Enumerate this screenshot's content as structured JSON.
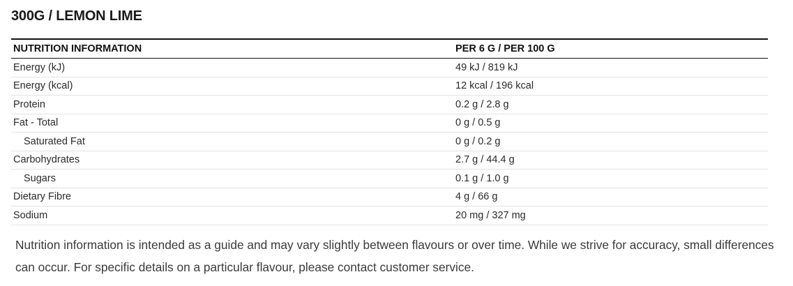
{
  "title": "300G / LEMON LIME",
  "table": {
    "header": [
      "NUTRITION INFORMATION",
      "PER 6 G / PER 100 G"
    ],
    "rows": [
      [
        "Energy (kJ)",
        "49 kJ / 819 kJ"
      ],
      [
        "Energy (kcal)",
        "12 kcal / 196 kcal"
      ],
      [
        "Protein",
        "0.2 g / 2.8 g"
      ],
      [
        "Fat - Total",
        "0 g / 0.5 g"
      ],
      [
        "Saturated Fat",
        "0 g / 0.2 g"
      ],
      [
        "Carbohydrates",
        "2.7 g / 44.4 g"
      ],
      [
        "Sugars",
        "0.1 g / 1.0 g"
      ],
      [
        "Dietary Fibre",
        "4 g / 66 g"
      ],
      [
        "Sodium",
        "20 mg / 327 mg"
      ]
    ]
  },
  "note": "Nutrition information is intended as a guide and may vary slightly between flavours or over time. While we strive for accuracy, small differences can occur. For specific details on a particular flavour, please contact customer service."
}
